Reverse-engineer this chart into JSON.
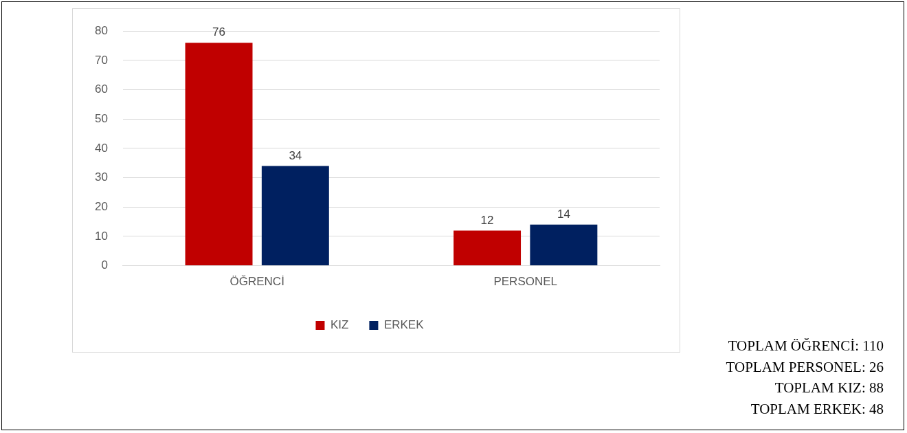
{
  "chart_data": {
    "type": "bar",
    "categories": [
      "ÖĞRENCİ",
      "PERSONEL"
    ],
    "series": [
      {
        "name": "KIZ",
        "color": "#c00000",
        "values": [
          76,
          12
        ]
      },
      {
        "name": "ERKEK",
        "color": "#002060",
        "values": [
          34,
          14
        ]
      }
    ],
    "ylim": [
      0,
      80
    ],
    "yticks": [
      0,
      10,
      20,
      30,
      40,
      50,
      60,
      70,
      80
    ],
    "grid": "y",
    "legend": "bottom",
    "data_labels": true,
    "annotations": [
      "TOPLAM ÖĞRENCİ: 110",
      "TOPLAM PERSONEL: 26",
      "TOPLAM KIZ: 88",
      "TOPLAM ERKEK: 48"
    ]
  }
}
